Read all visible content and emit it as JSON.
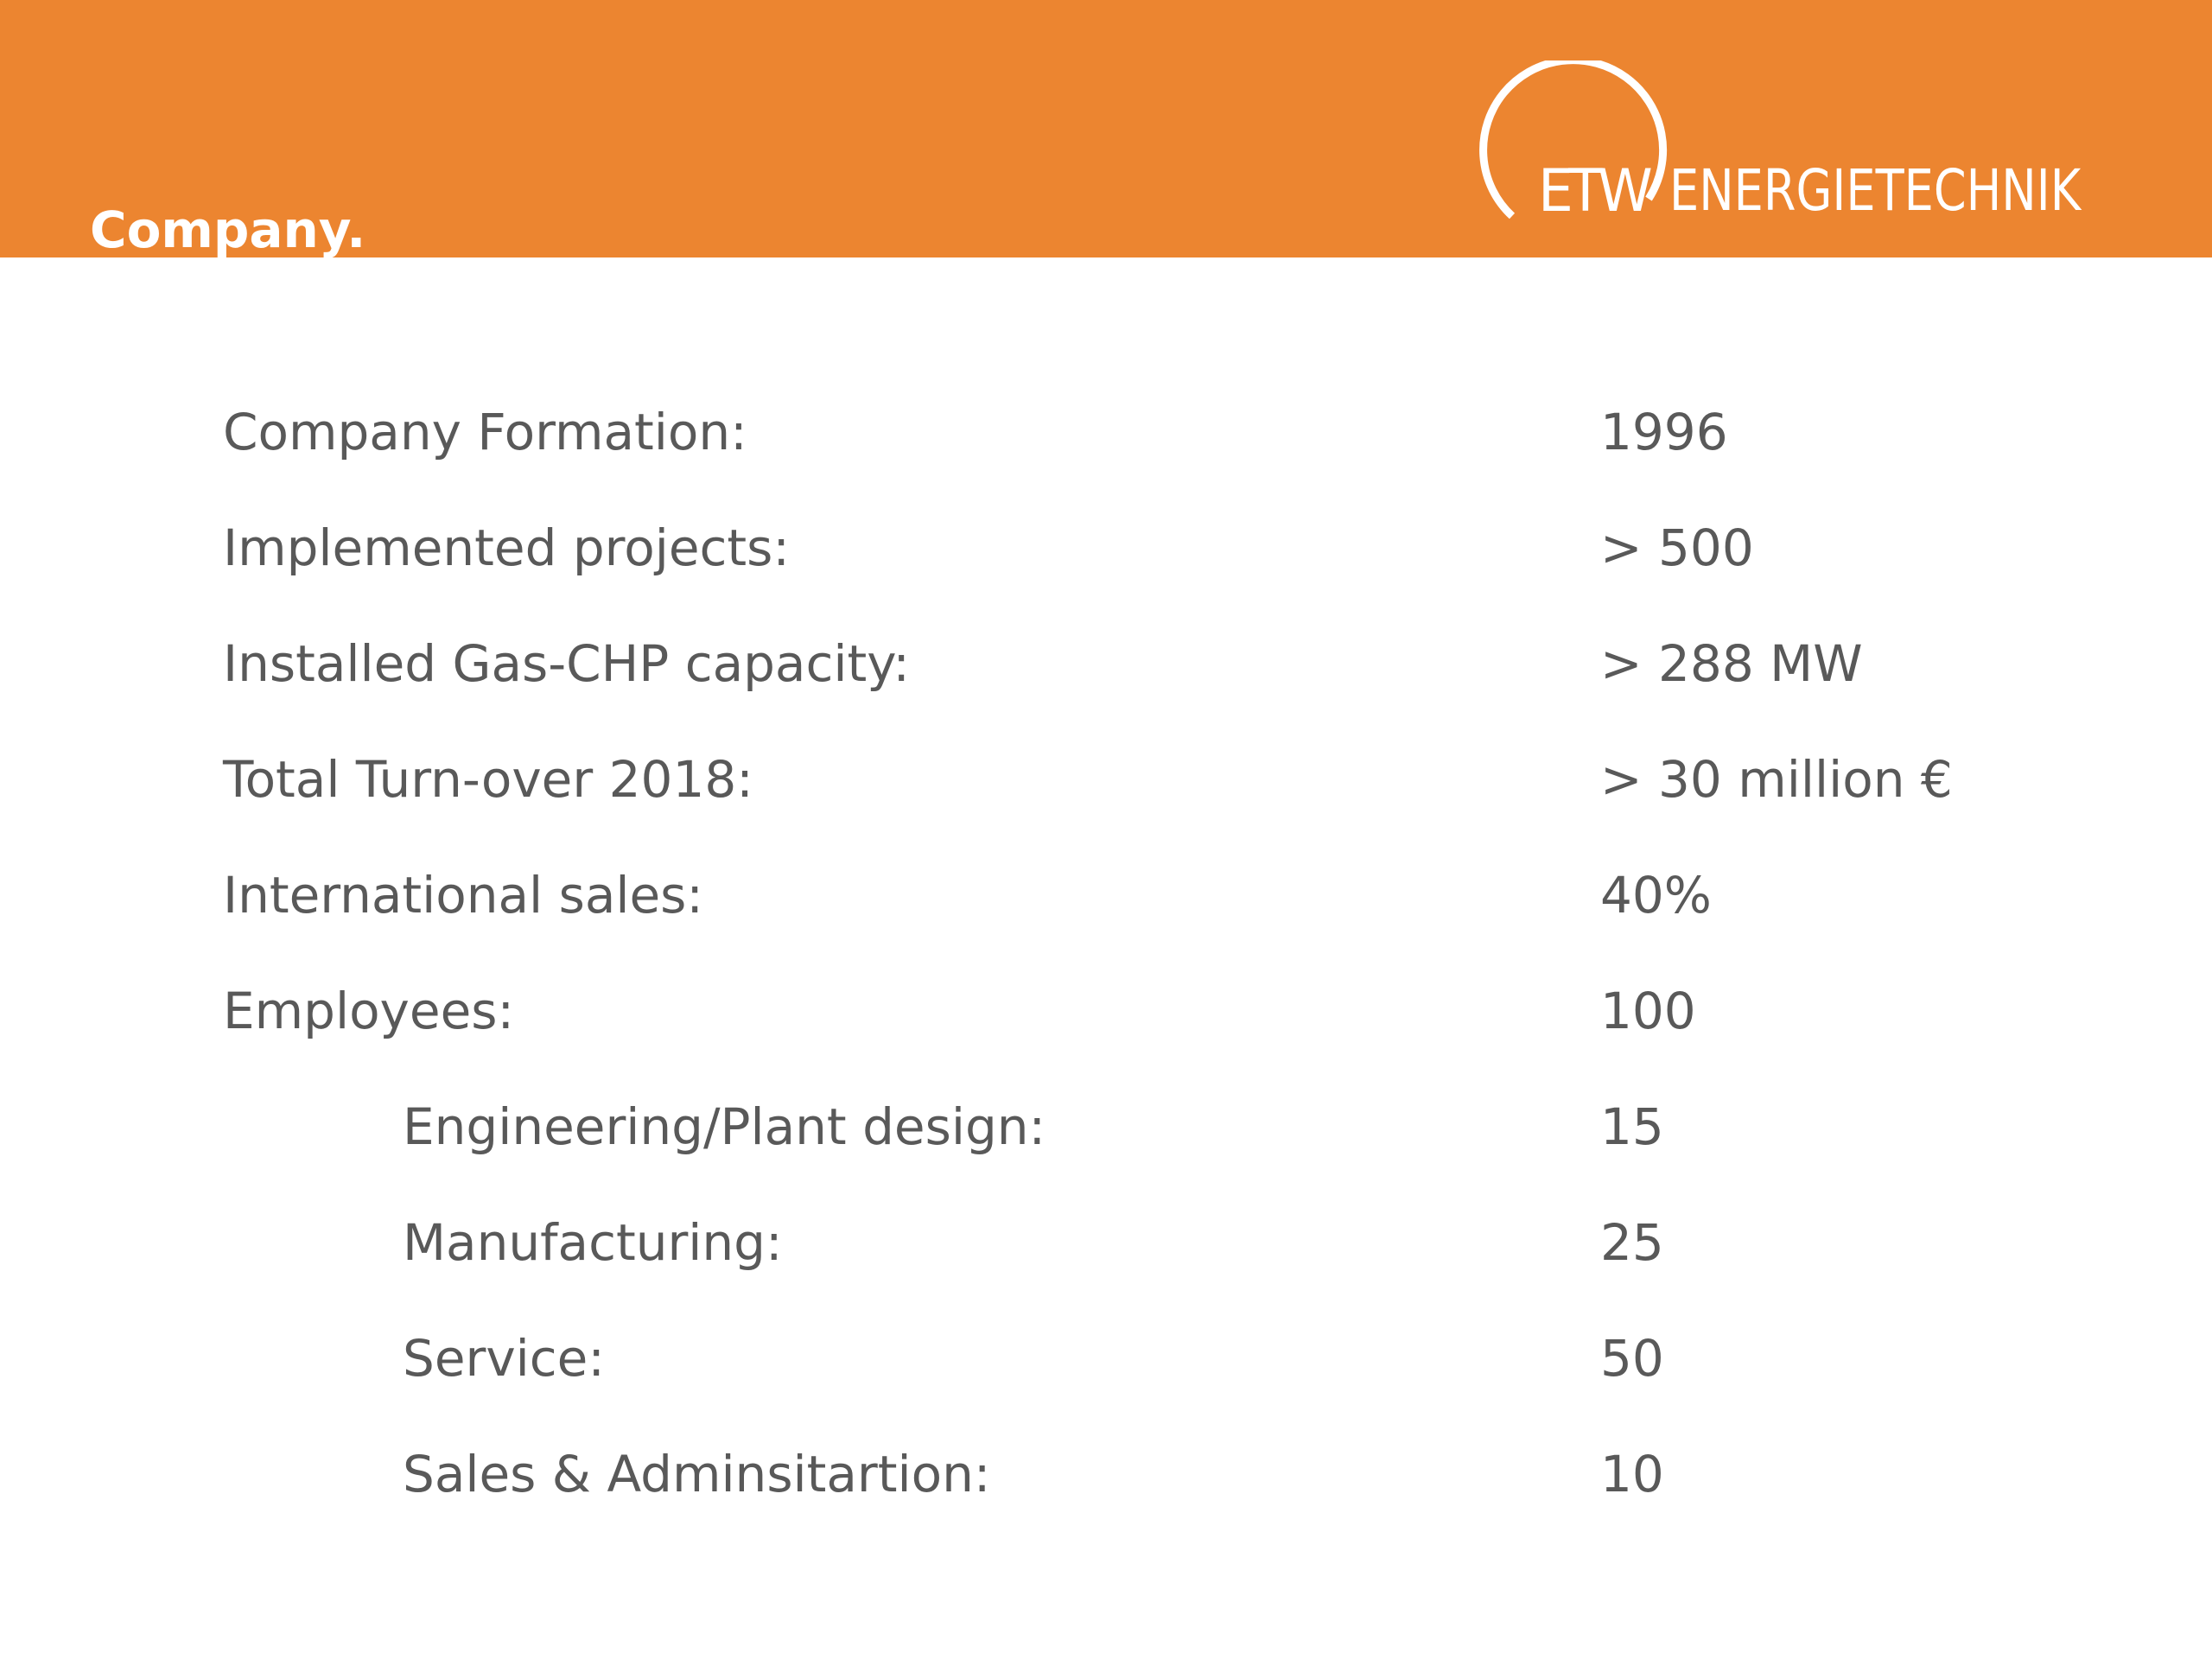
{
  "header": {
    "title": "Company.",
    "color": "#ec8530",
    "logo": {
      "mark": "ETW",
      "name": "ENERGIETECHNIK"
    }
  },
  "facts": [
    {
      "label": "Company Formation:",
      "value": "1996",
      "indent": false
    },
    {
      "label": "Implemented projects:",
      "value": "> 500",
      "indent": false
    },
    {
      "label": "Installed Gas-CHP capacity:",
      "value": "> 288 MW",
      "indent": false
    },
    {
      "label": "Total Turn-over 2018:",
      "value": "> 30 million €",
      "indent": false
    },
    {
      "label": "International sales:",
      "value": "40%",
      "indent": false
    },
    {
      "label": "Employees:",
      "value": "100",
      "indent": false
    },
    {
      "label": "Engineering/Plant design:",
      "value": "15",
      "indent": true
    },
    {
      "label": "Manufacturing:",
      "value": "25",
      "indent": true
    },
    {
      "label": "Service:",
      "value": "50",
      "indent": true
    },
    {
      "label": "Sales & Adminsitartion:",
      "value": "10",
      "indent": true
    }
  ]
}
